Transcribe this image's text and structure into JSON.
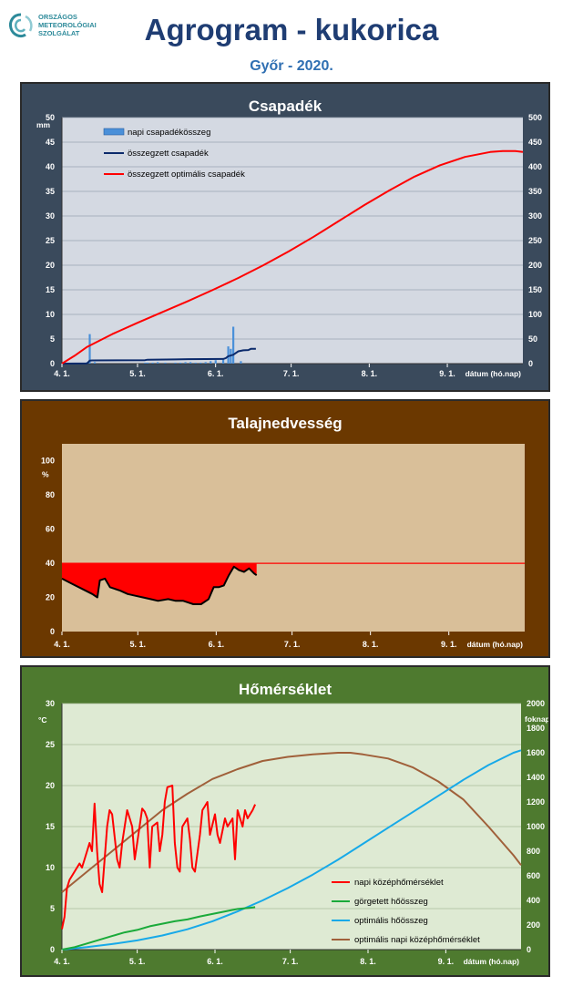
{
  "header": {
    "logo_lines": [
      "ORSZÁGOS",
      "METEOROLÓGIAI",
      "SZOLGÁLAT"
    ],
    "title": "Agrogram - kukorica",
    "subtitle": "Győr - 2020."
  },
  "colors": {
    "title": "#1f3d73",
    "subtitle": "#2f6fb2",
    "precip_panel": "#3a4a5c",
    "precip_plot": "#d4d9e2",
    "soil_panel": "#6b3800",
    "soil_plot": "#d9bf99",
    "temp_panel": "#4e7a2f",
    "temp_plot": "#deead3",
    "red": "#ff0000",
    "navy": "#0b2a6b",
    "bar_blue": "#4a90d9",
    "green": "#1aaa3a",
    "cyan": "#17a9e8",
    "brown": "#a0603a"
  },
  "chart_data": [
    {
      "id": "precip",
      "type": "bar",
      "title": "Csapadék",
      "xlabel": "dátum (hó.nap)",
      "ylabel_left": "mm",
      "ylabel_right": "",
      "x_ticks": [
        "4. 1.",
        "5. 1.",
        "6. 1.",
        "7. 1.",
        "8. 1.",
        "9. 1."
      ],
      "ylim_left": [
        0,
        50
      ],
      "ylim_right": [
        0,
        500
      ],
      "yticks_left": [
        0,
        5,
        10,
        15,
        20,
        25,
        30,
        35,
        40,
        45,
        50
      ],
      "yticks_right": [
        0,
        50,
        100,
        150,
        200,
        250,
        300,
        350,
        400,
        450,
        500
      ],
      "legend": [
        "napi csapadékösszeg",
        "összegzett csapadék",
        "összegzett optimális  csapadék"
      ],
      "legend_position": "top-left",
      "x_range_days": [
        0,
        183
      ],
      "series": [
        {
          "name": "napi csapadékösszeg",
          "axis": "left",
          "kind": "bar",
          "x": [
            10,
            11,
            13,
            33,
            34,
            36,
            38,
            41,
            45,
            47,
            49,
            51,
            53,
            55,
            57,
            59,
            61,
            64,
            66,
            67,
            68,
            71
          ],
          "values": [
            0.3,
            6.0,
            0.3,
            0.2,
            0.2,
            0.2,
            0.3,
            0.2,
            0.2,
            0.2,
            0.3,
            0.3,
            0.2,
            0.2,
            0.3,
            0.5,
            0.7,
            0.8,
            3.5,
            3.0,
            7.5,
            0.5
          ]
        },
        {
          "name": "összegzett csapadék",
          "axis": "right",
          "kind": "line",
          "x": [
            0,
            10,
            11,
            12,
            33,
            34,
            45,
            50,
            64,
            65,
            66,
            68,
            70,
            72,
            74,
            75,
            77
          ],
          "values": [
            0,
            0.5,
            6,
            6.5,
            7,
            8,
            8.5,
            9,
            9.5,
            11,
            15,
            18,
            25,
            27,
            27.5,
            30,
            30
          ]
        },
        {
          "name": "összegzett optimális  csapadék",
          "axis": "right",
          "kind": "line",
          "x": [
            0,
            5,
            10,
            20,
            30,
            40,
            50,
            60,
            70,
            80,
            90,
            100,
            110,
            120,
            130,
            140,
            150,
            160,
            170,
            175,
            180,
            183
          ],
          "values": [
            0,
            16,
            34,
            60,
            83,
            105,
            127,
            150,
            174,
            200,
            228,
            258,
            290,
            322,
            352,
            380,
            403,
            420,
            430,
            432,
            432,
            430
          ]
        }
      ]
    },
    {
      "id": "soil",
      "type": "area",
      "title": "Talajnedvesség",
      "xlabel": "dátum (hó.nap)",
      "ylabel_left": "%",
      "x_ticks": [
        "4. 1.",
        "5. 1.",
        "6. 1.",
        "7. 1.",
        "8. 1.",
        "9. 1."
      ],
      "ylim": [
        0,
        110
      ],
      "yticks": [
        0,
        20,
        40,
        60,
        80,
        100
      ],
      "threshold": 40,
      "x_range_days": [
        0,
        183
      ],
      "series": [
        {
          "name": "talajnedvesség",
          "x": [
            0,
            4,
            8,
            12,
            14,
            15,
            17,
            19,
            21,
            23,
            26,
            29,
            32,
            35,
            38,
            42,
            45,
            48,
            50,
            52,
            55,
            58,
            60,
            62,
            64,
            66,
            68,
            70,
            72,
            74,
            76,
            77
          ],
          "values": [
            31,
            28,
            25,
            22,
            20,
            30,
            31,
            26,
            25,
            24,
            22,
            21,
            20,
            19,
            18,
            19,
            18,
            18,
            17,
            16,
            16,
            19,
            26,
            26,
            27,
            33,
            38,
            36,
            35,
            37,
            34,
            33
          ]
        }
      ]
    },
    {
      "id": "temp",
      "type": "line",
      "title": "Hőmérséklet",
      "xlabel": "dátum (hó.nap)",
      "ylabel_left": "°C",
      "ylabel_right": "foknap",
      "x_ticks": [
        "4. 1.",
        "5. 1.",
        "6. 1.",
        "7. 1.",
        "8. 1.",
        "9. 1."
      ],
      "ylim_left": [
        0,
        30
      ],
      "ylim_right": [
        0,
        2000
      ],
      "yticks_left": [
        0,
        5,
        10,
        15,
        20,
        25,
        30
      ],
      "yticks_right": [
        0,
        200,
        400,
        600,
        800,
        1000,
        1200,
        1400,
        1600,
        1800,
        2000
      ],
      "legend": [
        "napi középhőmérséklet",
        "görgetett hőösszeg",
        "optimális hőösszeg",
        "optimális napi középhőmérséklet"
      ],
      "legend_position": "bottom-right",
      "x_range_days": [
        0,
        183
      ],
      "series": [
        {
          "name": "napi középhőmérséklet",
          "axis": "left",
          "x": [
            0,
            1,
            2,
            3,
            5,
            7,
            8,
            9,
            11,
            12,
            13,
            14,
            15,
            16,
            18,
            19,
            20,
            22,
            23,
            24,
            26,
            27,
            28,
            29,
            30,
            32,
            33,
            34,
            35,
            36,
            38,
            39,
            40,
            41,
            42,
            44,
            45,
            46,
            47,
            48,
            50,
            51,
            52,
            53,
            55,
            56,
            57,
            58,
            59,
            61,
            62,
            63,
            65,
            66,
            68,
            69,
            70,
            72,
            73,
            74,
            76,
            77
          ],
          "values": [
            2.5,
            4,
            7.5,
            8.5,
            9.5,
            10.5,
            10,
            11,
            13,
            12,
            17.8,
            12,
            8,
            7,
            15,
            17,
            16.5,
            11,
            10,
            13,
            17,
            16,
            15,
            11,
            13,
            17.2,
            16.8,
            16,
            10,
            15,
            15.5,
            12,
            14,
            18,
            19.8,
            20,
            13,
            10,
            9.5,
            15,
            16,
            13.5,
            10,
            9.5,
            14,
            17,
            17.5,
            18,
            14,
            16.5,
            14,
            13,
            16,
            15,
            16,
            11,
            17,
            15,
            17,
            16,
            17,
            17.7
          ]
        },
        {
          "name": "görgetett hőösszeg",
          "axis": "right",
          "x": [
            0,
            5,
            10,
            15,
            20,
            25,
            30,
            35,
            40,
            45,
            50,
            55,
            60,
            65,
            70,
            75,
            77
          ],
          "values": [
            0,
            20,
            50,
            80,
            110,
            140,
            160,
            190,
            210,
            230,
            245,
            270,
            290,
            310,
            330,
            340,
            345
          ]
        },
        {
          "name": "optimális hőösszeg",
          "axis": "right",
          "x": [
            0,
            10,
            20,
            30,
            40,
            50,
            60,
            70,
            80,
            90,
            100,
            110,
            120,
            130,
            140,
            150,
            160,
            170,
            180,
            183
          ],
          "values": [
            0,
            20,
            45,
            75,
            115,
            165,
            230,
            310,
            400,
            500,
            610,
            730,
            860,
            990,
            1120,
            1250,
            1380,
            1500,
            1600,
            1620
          ]
        },
        {
          "name": "optimális napi középhőmérséklet",
          "axis": "left",
          "x": [
            0,
            10,
            20,
            30,
            40,
            50,
            60,
            70,
            80,
            90,
            100,
            110,
            115,
            120,
            130,
            140,
            150,
            160,
            170,
            180,
            183
          ],
          "values": [
            7,
            9.5,
            12,
            14.5,
            17,
            19,
            20.8,
            22,
            23,
            23.5,
            23.8,
            24,
            24,
            23.8,
            23.3,
            22.2,
            20.5,
            18.3,
            15,
            11.5,
            10.3
          ]
        }
      ]
    }
  ]
}
